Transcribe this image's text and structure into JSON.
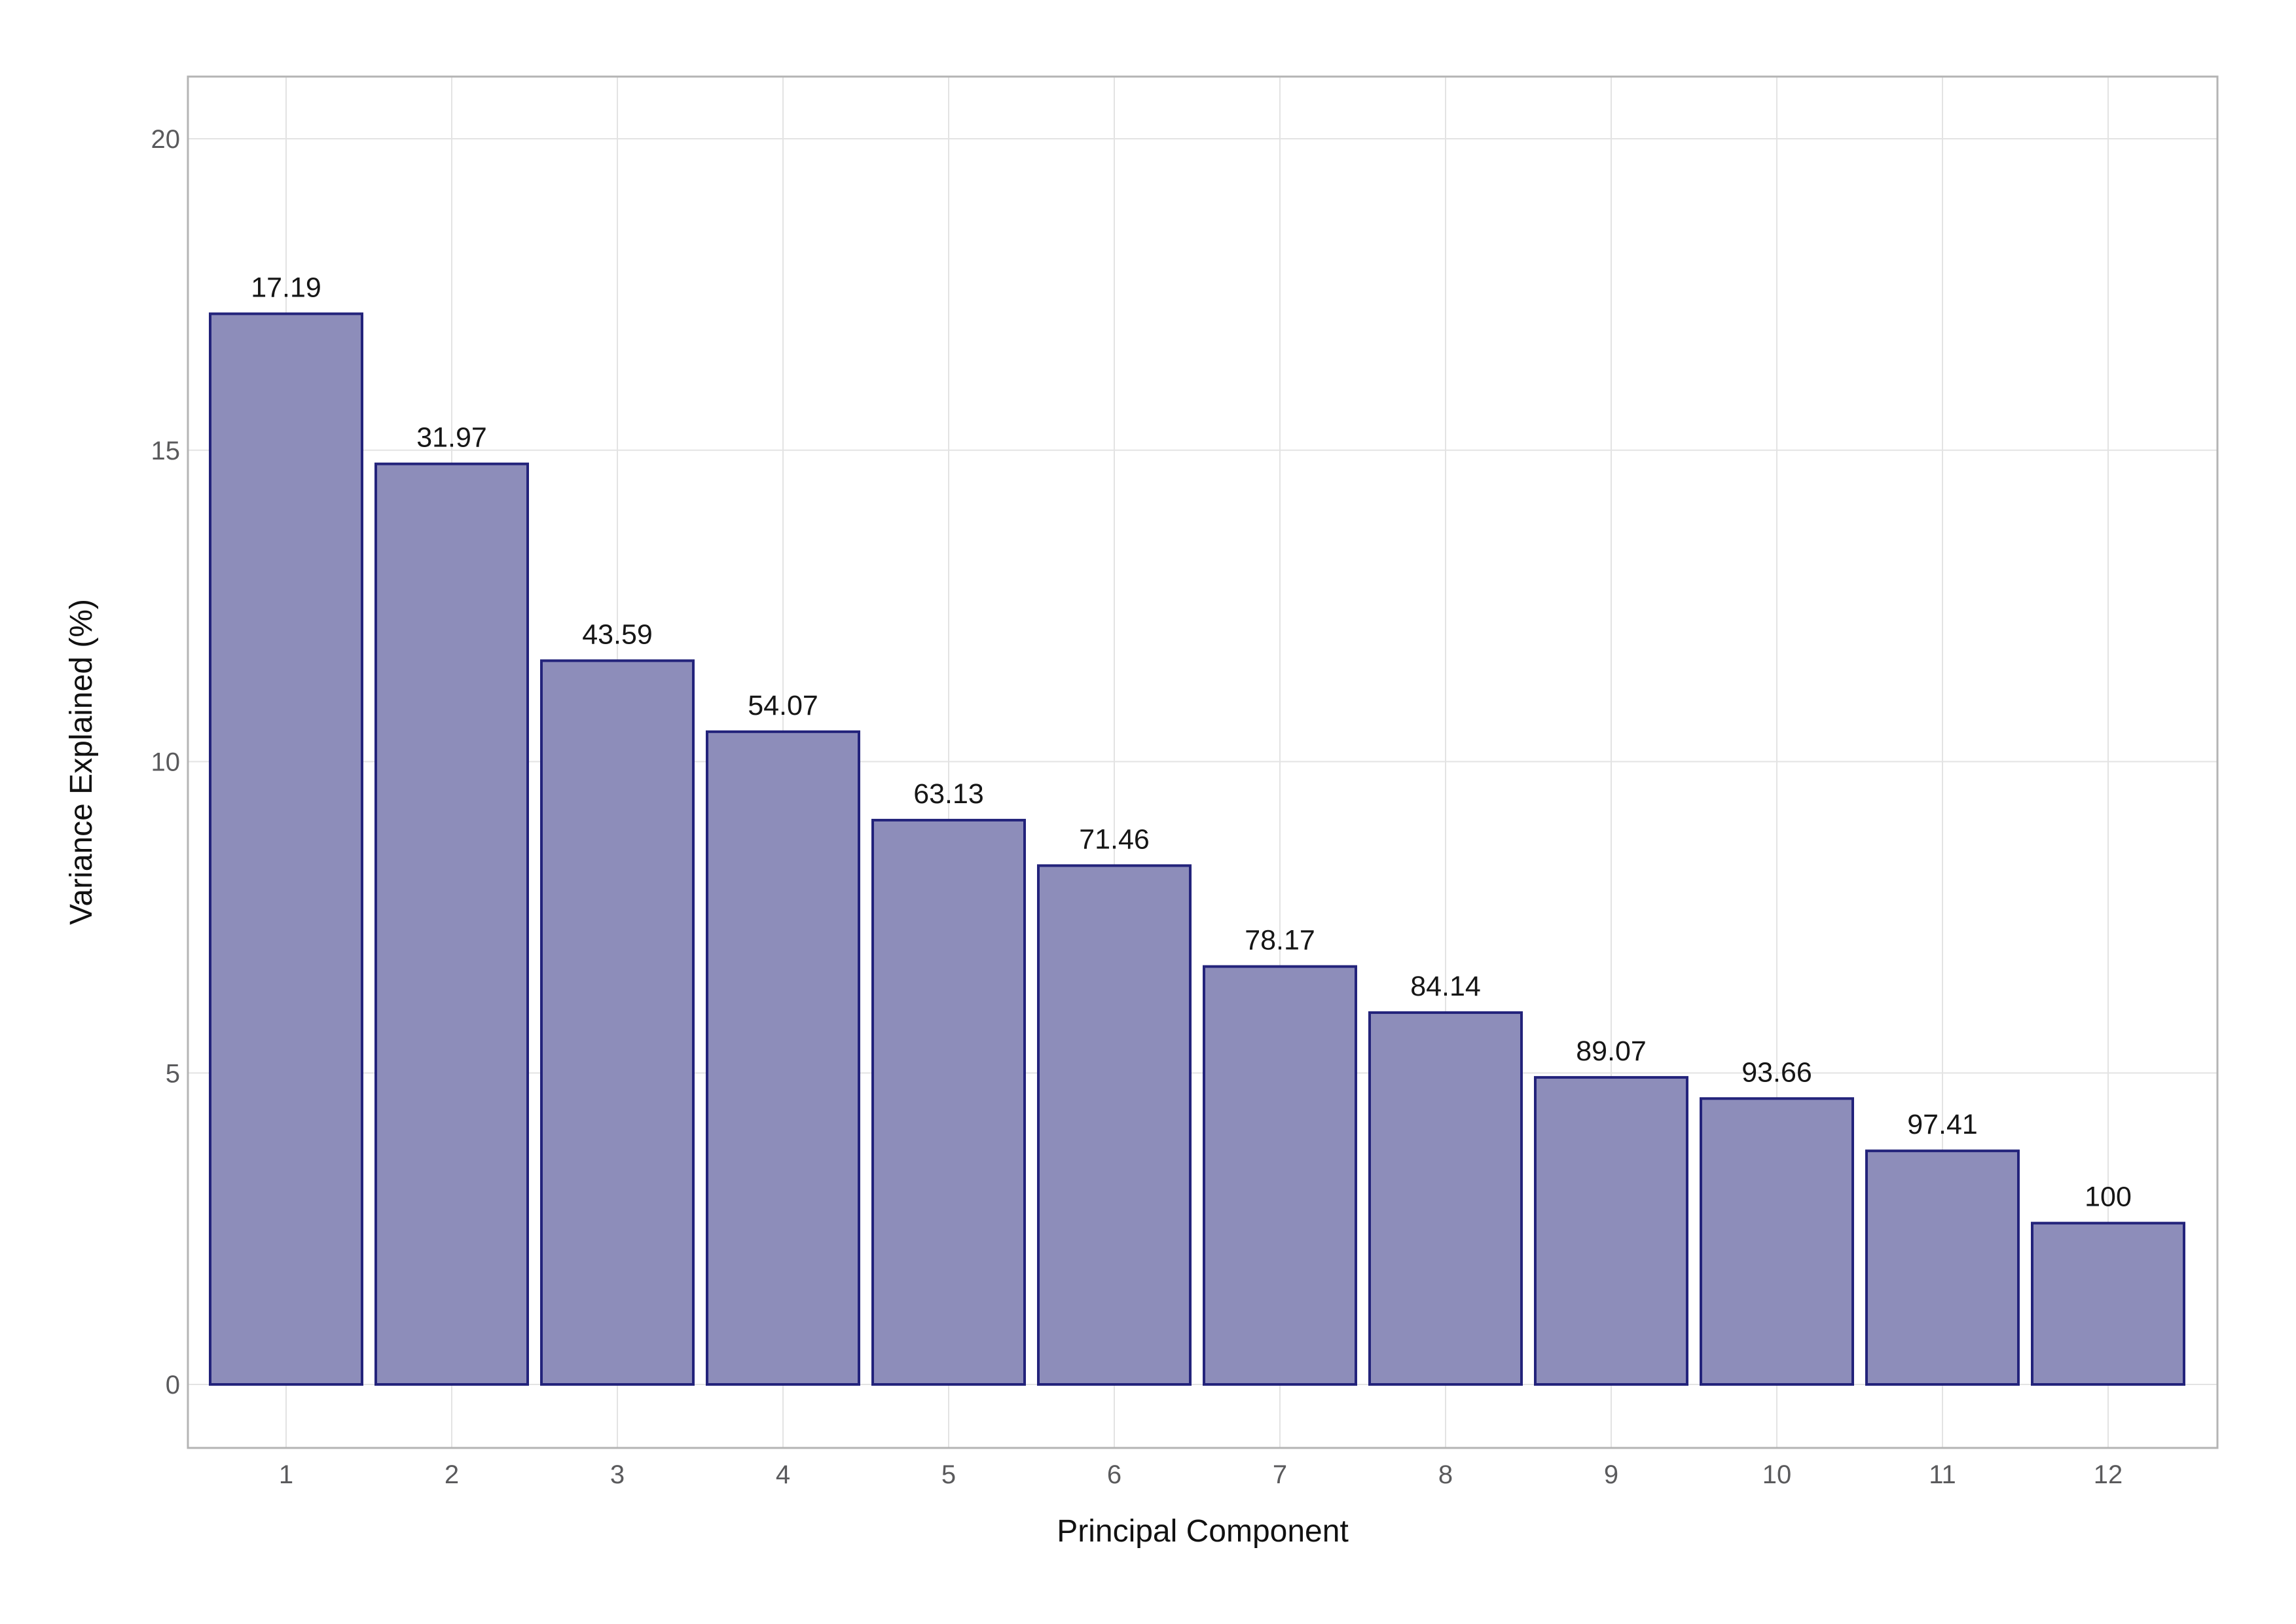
{
  "figure": {
    "background": "#ffffff"
  },
  "chart_data": {
    "type": "bar",
    "title": "",
    "xlabel": "Principal Component",
    "ylabel": "Variance Explained (%)",
    "categories": [
      "1",
      "2",
      "3",
      "4",
      "5",
      "6",
      "7",
      "8",
      "9",
      "10",
      "11",
      "12"
    ],
    "series": [
      {
        "name": "individual_variance_pct_bar_heights",
        "values": [
          17.19,
          14.78,
          11.62,
          10.48,
          9.06,
          8.33,
          6.71,
          5.97,
          4.93,
          4.59,
          3.75,
          2.59
        ]
      },
      {
        "name": "cumulative_variance_pct_bar_labels",
        "values": [
          17.19,
          31.97,
          43.59,
          54.07,
          63.13,
          71.46,
          78.17,
          84.14,
          89.07,
          93.66,
          97.41,
          100
        ]
      }
    ],
    "bar_labels": [
      "17.19",
      "31.97",
      "43.59",
      "54.07",
      "63.13",
      "71.46",
      "78.17",
      "84.14",
      "89.07",
      "93.66",
      "97.41",
      "100"
    ],
    "y_ticks": [
      0,
      5,
      10,
      15,
      20
    ],
    "y_tick_labels": [
      "0",
      "5",
      "10",
      "15",
      "20"
    ],
    "x_tick_labels": [
      "1",
      "2",
      "3",
      "4",
      "5",
      "6",
      "7",
      "8",
      "9",
      "10",
      "11",
      "12"
    ],
    "ylim": [
      -1.0,
      21.0
    ],
    "grid": true,
    "legend": false,
    "colors": {
      "bar_fill": "#8d8dba",
      "bar_stroke": "#23237b",
      "gridline": "#e3e3e3",
      "axis_border": "#b4b4b4",
      "tick_label": "#5a5a5c",
      "value_label": "#161616",
      "axis_title": "#111111",
      "background": "#ffffff"
    }
  }
}
